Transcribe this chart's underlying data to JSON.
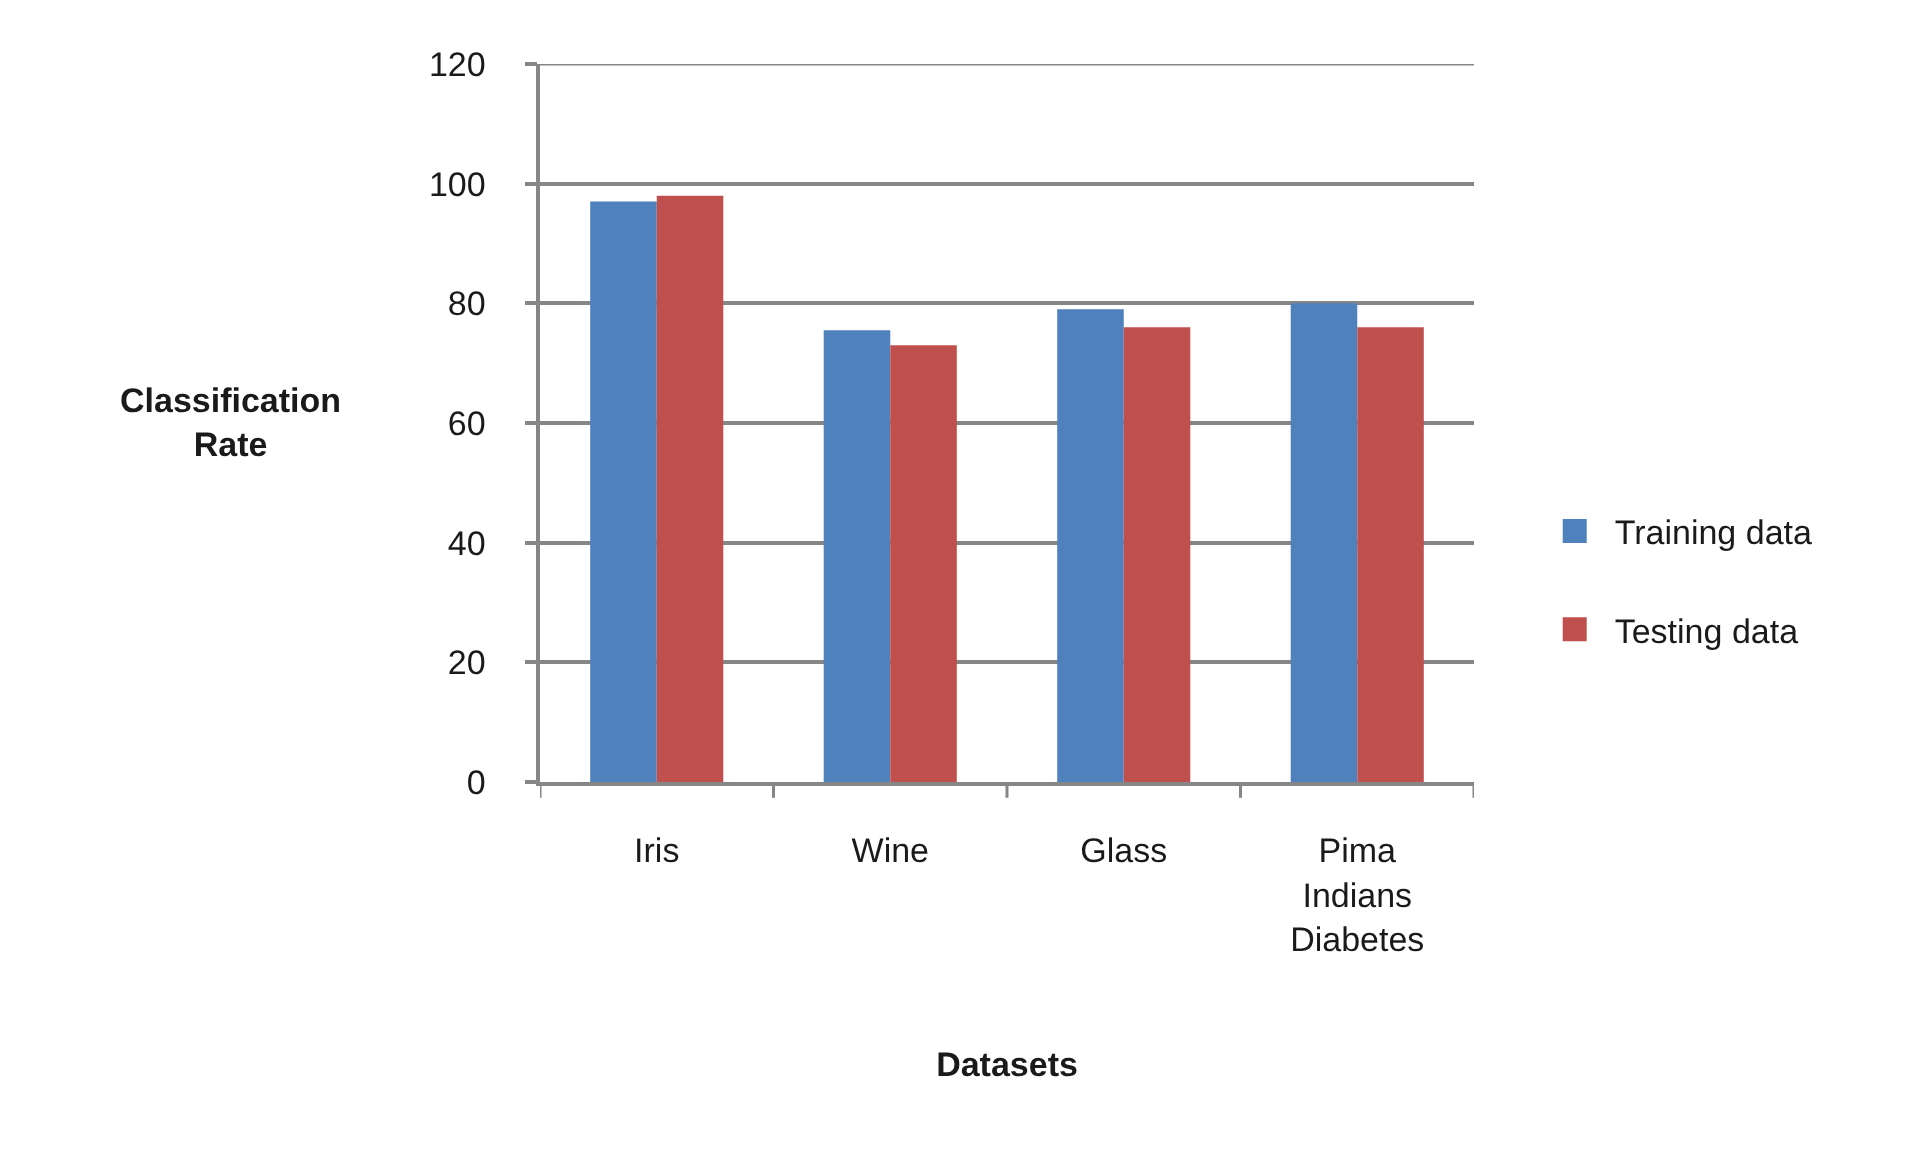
{
  "chart_data": {
    "type": "bar",
    "categories": [
      "Iris",
      "Wine",
      "Glass",
      "Pima Indians Diabetes"
    ],
    "series": [
      {
        "name": "Training data",
        "color": "#4f81bd",
        "values": [
          97,
          75.5,
          79,
          80
        ]
      },
      {
        "name": "Testing data",
        "color": "#c0504d",
        "values": [
          98,
          73,
          76,
          76
        ]
      }
    ],
    "xlabel": "Datasets",
    "ylabel": "Classification Rate",
    "ylim": [
      0,
      120
    ],
    "yticks": [
      0,
      20,
      40,
      60,
      80,
      100,
      120
    ],
    "grid": "y",
    "legend": "right"
  }
}
